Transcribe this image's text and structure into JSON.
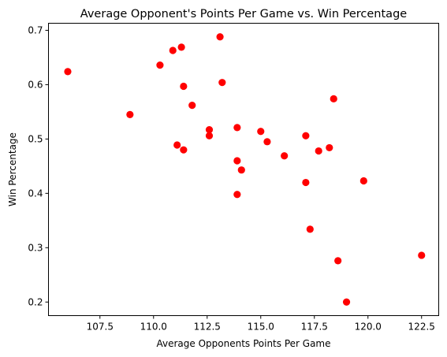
{
  "chart_data": {
    "type": "scatter",
    "title": "Average Opponent's Points Per Game vs. Win Percentage",
    "xlabel": "Average Opponents Points Per Game",
    "ylabel": "Win Percentage",
    "xlim": [
      105.1,
      123.3
    ],
    "ylim": [
      0.175,
      0.713
    ],
    "xticks": [
      107.5,
      110.0,
      112.5,
      115.0,
      117.5,
      120.0,
      122.5
    ],
    "xtick_labels": [
      "107.5",
      "110.0",
      "112.5",
      "115.0",
      "117.5",
      "120.0",
      "122.5"
    ],
    "yticks": [
      0.2,
      0.3,
      0.4,
      0.5,
      0.6,
      0.7
    ],
    "ytick_labels": [
      "0.2",
      "0.3",
      "0.4",
      "0.5",
      "0.6",
      "0.7"
    ],
    "grid": false,
    "marker_color": "#ff0000",
    "points": [
      {
        "x": 106.0,
        "y": 0.624
      },
      {
        "x": 108.9,
        "y": 0.545
      },
      {
        "x": 110.3,
        "y": 0.636
      },
      {
        "x": 110.9,
        "y": 0.663
      },
      {
        "x": 111.1,
        "y": 0.489
      },
      {
        "x": 111.3,
        "y": 0.669
      },
      {
        "x": 111.4,
        "y": 0.597
      },
      {
        "x": 111.4,
        "y": 0.48
      },
      {
        "x": 111.8,
        "y": 0.562
      },
      {
        "x": 112.6,
        "y": 0.517
      },
      {
        "x": 112.6,
        "y": 0.506
      },
      {
        "x": 113.1,
        "y": 0.688
      },
      {
        "x": 113.2,
        "y": 0.604
      },
      {
        "x": 113.9,
        "y": 0.521
      },
      {
        "x": 113.9,
        "y": 0.46
      },
      {
        "x": 113.9,
        "y": 0.398
      },
      {
        "x": 114.1,
        "y": 0.443
      },
      {
        "x": 115.0,
        "y": 0.514
      },
      {
        "x": 115.3,
        "y": 0.495
      },
      {
        "x": 116.1,
        "y": 0.469
      },
      {
        "x": 117.1,
        "y": 0.506
      },
      {
        "x": 117.1,
        "y": 0.42
      },
      {
        "x": 117.3,
        "y": 0.334
      },
      {
        "x": 117.7,
        "y": 0.478
      },
      {
        "x": 118.2,
        "y": 0.484
      },
      {
        "x": 118.4,
        "y": 0.574
      },
      {
        "x": 118.6,
        "y": 0.276
      },
      {
        "x": 119.0,
        "y": 0.2
      },
      {
        "x": 119.8,
        "y": 0.423
      },
      {
        "x": 122.5,
        "y": 0.286
      }
    ]
  }
}
